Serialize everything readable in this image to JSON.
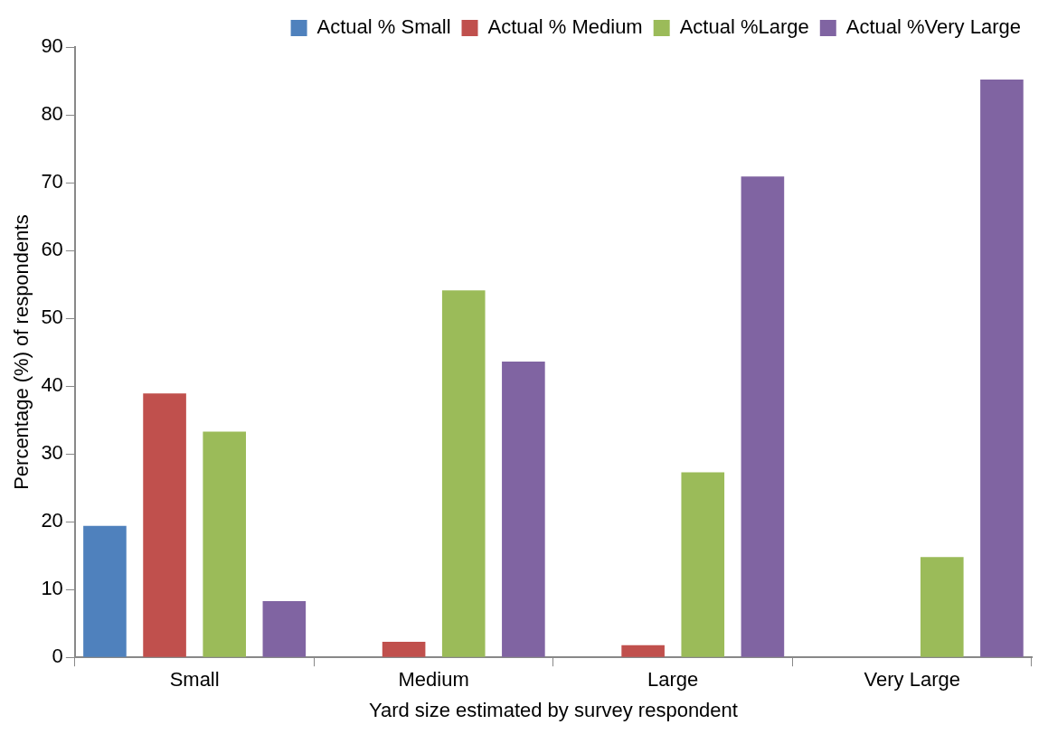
{
  "chart_data": {
    "type": "bar",
    "xlabel": "Yard size estimated by survey respondent",
    "ylabel": "Percentage (%) of respondents",
    "categories": [
      "Small",
      "Medium",
      "Large",
      "Very Large"
    ],
    "series": [
      {
        "name": "Actual % Small",
        "color": "#4f81bd",
        "values": [
          19.4,
          0,
          0,
          0
        ]
      },
      {
        "name": "Actual % Medium",
        "color": "#c0504d",
        "values": [
          38.9,
          2.3,
          1.8,
          0
        ]
      },
      {
        "name": "Actual %Large",
        "color": "#9bbb59",
        "values": [
          33.3,
          54.1,
          27.3,
          14.8
        ]
      },
      {
        "name": "Actual %Very Large",
        "color": "#8064a2",
        "values": [
          8.3,
          43.6,
          70.9,
          85.2
        ]
      }
    ],
    "ylim": [
      0,
      90
    ],
    "yticks": [
      0,
      10,
      20,
      30,
      40,
      50,
      60,
      70,
      80,
      90
    ],
    "grid": false,
    "legend": "top right"
  }
}
